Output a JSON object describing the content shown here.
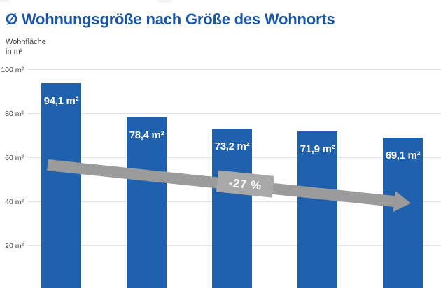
{
  "chart_data": {
    "type": "bar",
    "title": "Ø Wohnungsgröße nach Größe des Wohnorts",
    "ylabel": "Wohnfläche in m²",
    "ylabel_lines": [
      "Wohnfläche",
      "in m²"
    ],
    "xlabel": "",
    "values": [
      94.1,
      78.4,
      73.2,
      71.9,
      69.1
    ],
    "bar_labels": [
      "94,1 m²",
      "78,4 m²",
      "73,2 m²",
      "71,9 m²",
      "69,1 m²"
    ],
    "yticks": [
      100,
      80,
      60,
      40,
      20
    ],
    "ytick_labels": [
      "100 m²",
      "80 m²",
      "60 m²",
      "40 m²",
      "20 m²"
    ],
    "ylim": [
      0,
      105
    ],
    "grid": true,
    "legend_position": "none",
    "x_category_labels_visible": false,
    "annotation": {
      "label": "-27 %",
      "shape": "downward-trend-arrow",
      "angle_deg": 6
    },
    "colors": {
      "bar": "#1f61ac",
      "title": "#1a55a6",
      "arrow": "#9b9b9b",
      "annotation_box": "#a8a8a8",
      "gridline": "#e3e3e3",
      "tick_text": "#3d3d3d",
      "bar_label_text": "#ffffff",
      "background": "#ffffff"
    }
  }
}
